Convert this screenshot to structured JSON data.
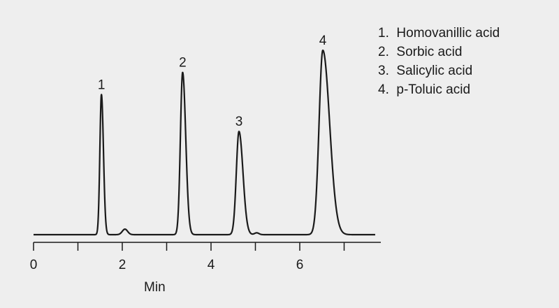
{
  "chart_data": {
    "type": "line",
    "title": "",
    "xlabel": "Min",
    "ylabel": "",
    "xlim": [
      0,
      7.7
    ],
    "x_ticks": [
      0,
      1,
      2,
      3,
      4,
      5,
      6,
      7
    ],
    "x_tick_labels": [
      "0",
      "",
      "2",
      "",
      "4",
      "",
      "6",
      ""
    ],
    "grid": false,
    "legend_position": "top-right",
    "baseline": 0,
    "peaks": [
      {
        "label": "1",
        "compound": "Homovanillic acid",
        "retention_time_min": 1.53,
        "height": 0.76,
        "width_min": 0.035,
        "tailing": 1.3
      },
      {
        "label": "2",
        "compound": "Sorbic acid",
        "retention_time_min": 3.36,
        "height": 0.88,
        "width_min": 0.05,
        "tailing": 1.4
      },
      {
        "label": "3",
        "compound": "Salicylic acid",
        "retention_time_min": 4.63,
        "height": 0.56,
        "width_min": 0.06,
        "tailing": 1.5
      },
      {
        "label": "4",
        "compound": "p-Toluic acid",
        "retention_time_min": 6.52,
        "height": 1.0,
        "width_min": 0.085,
        "tailing": 1.8
      }
    ],
    "minor_peaks": [
      {
        "retention_time_min": 2.06,
        "height": 0.03,
        "width_min": 0.06
      },
      {
        "retention_time_min": 5.03,
        "height": 0.01,
        "width_min": 0.05
      }
    ],
    "legend": [
      "1.  Homovanillic acid",
      "2.  Sorbic acid",
      "3.  Salicylic acid",
      "4.  p-Toluic acid"
    ],
    "colors": {
      "background": "#eeeeee",
      "trace": "#1a1a1a",
      "axis": "#1a1a1a"
    }
  }
}
